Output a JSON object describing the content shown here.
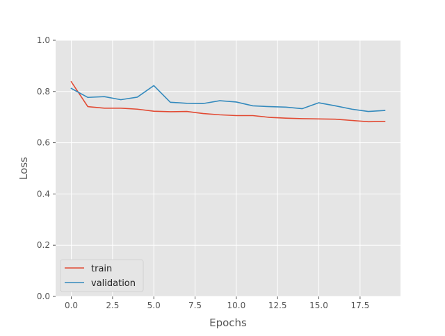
{
  "chart_data": {
    "type": "line",
    "title": "",
    "xlabel": "Epochs",
    "ylabel": "Loss",
    "xlim": [
      -0.95,
      19.95
    ],
    "ylim": [
      0.0,
      1.0
    ],
    "x_ticks": [
      0.0,
      2.5,
      5.0,
      7.5,
      10.0,
      12.5,
      15.0,
      17.5
    ],
    "x_tick_labels": [
      "0.0",
      "2.5",
      "5.0",
      "7.5",
      "10.0",
      "12.5",
      "15.0",
      "17.5"
    ],
    "y_ticks": [
      0.0,
      0.2,
      0.4,
      0.6,
      0.8,
      1.0
    ],
    "y_tick_labels": [
      "0.0",
      "0.2",
      "0.4",
      "0.6",
      "0.8",
      "1.0"
    ],
    "grid": true,
    "legend_position": "lower-left",
    "x": [
      0,
      1,
      2,
      3,
      4,
      5,
      6,
      7,
      8,
      9,
      10,
      11,
      12,
      13,
      14,
      15,
      16,
      17,
      18,
      19
    ],
    "series": [
      {
        "name": "train",
        "color": "#E24A33",
        "values": [
          0.838,
          0.741,
          0.735,
          0.735,
          0.731,
          0.723,
          0.721,
          0.722,
          0.714,
          0.709,
          0.706,
          0.706,
          0.699,
          0.696,
          0.694,
          0.693,
          0.692,
          0.687,
          0.682,
          0.683
        ]
      },
      {
        "name": "validation",
        "color": "#348ABD",
        "values": [
          0.812,
          0.777,
          0.78,
          0.768,
          0.778,
          0.823,
          0.758,
          0.754,
          0.753,
          0.764,
          0.759,
          0.744,
          0.741,
          0.739,
          0.733,
          0.756,
          0.744,
          0.731,
          0.722,
          0.726
        ]
      }
    ]
  },
  "colors": {
    "plot_background": "#E5E5E5",
    "grid": "#FFFFFF",
    "tick_text": "#555555",
    "label_text": "#555555"
  }
}
